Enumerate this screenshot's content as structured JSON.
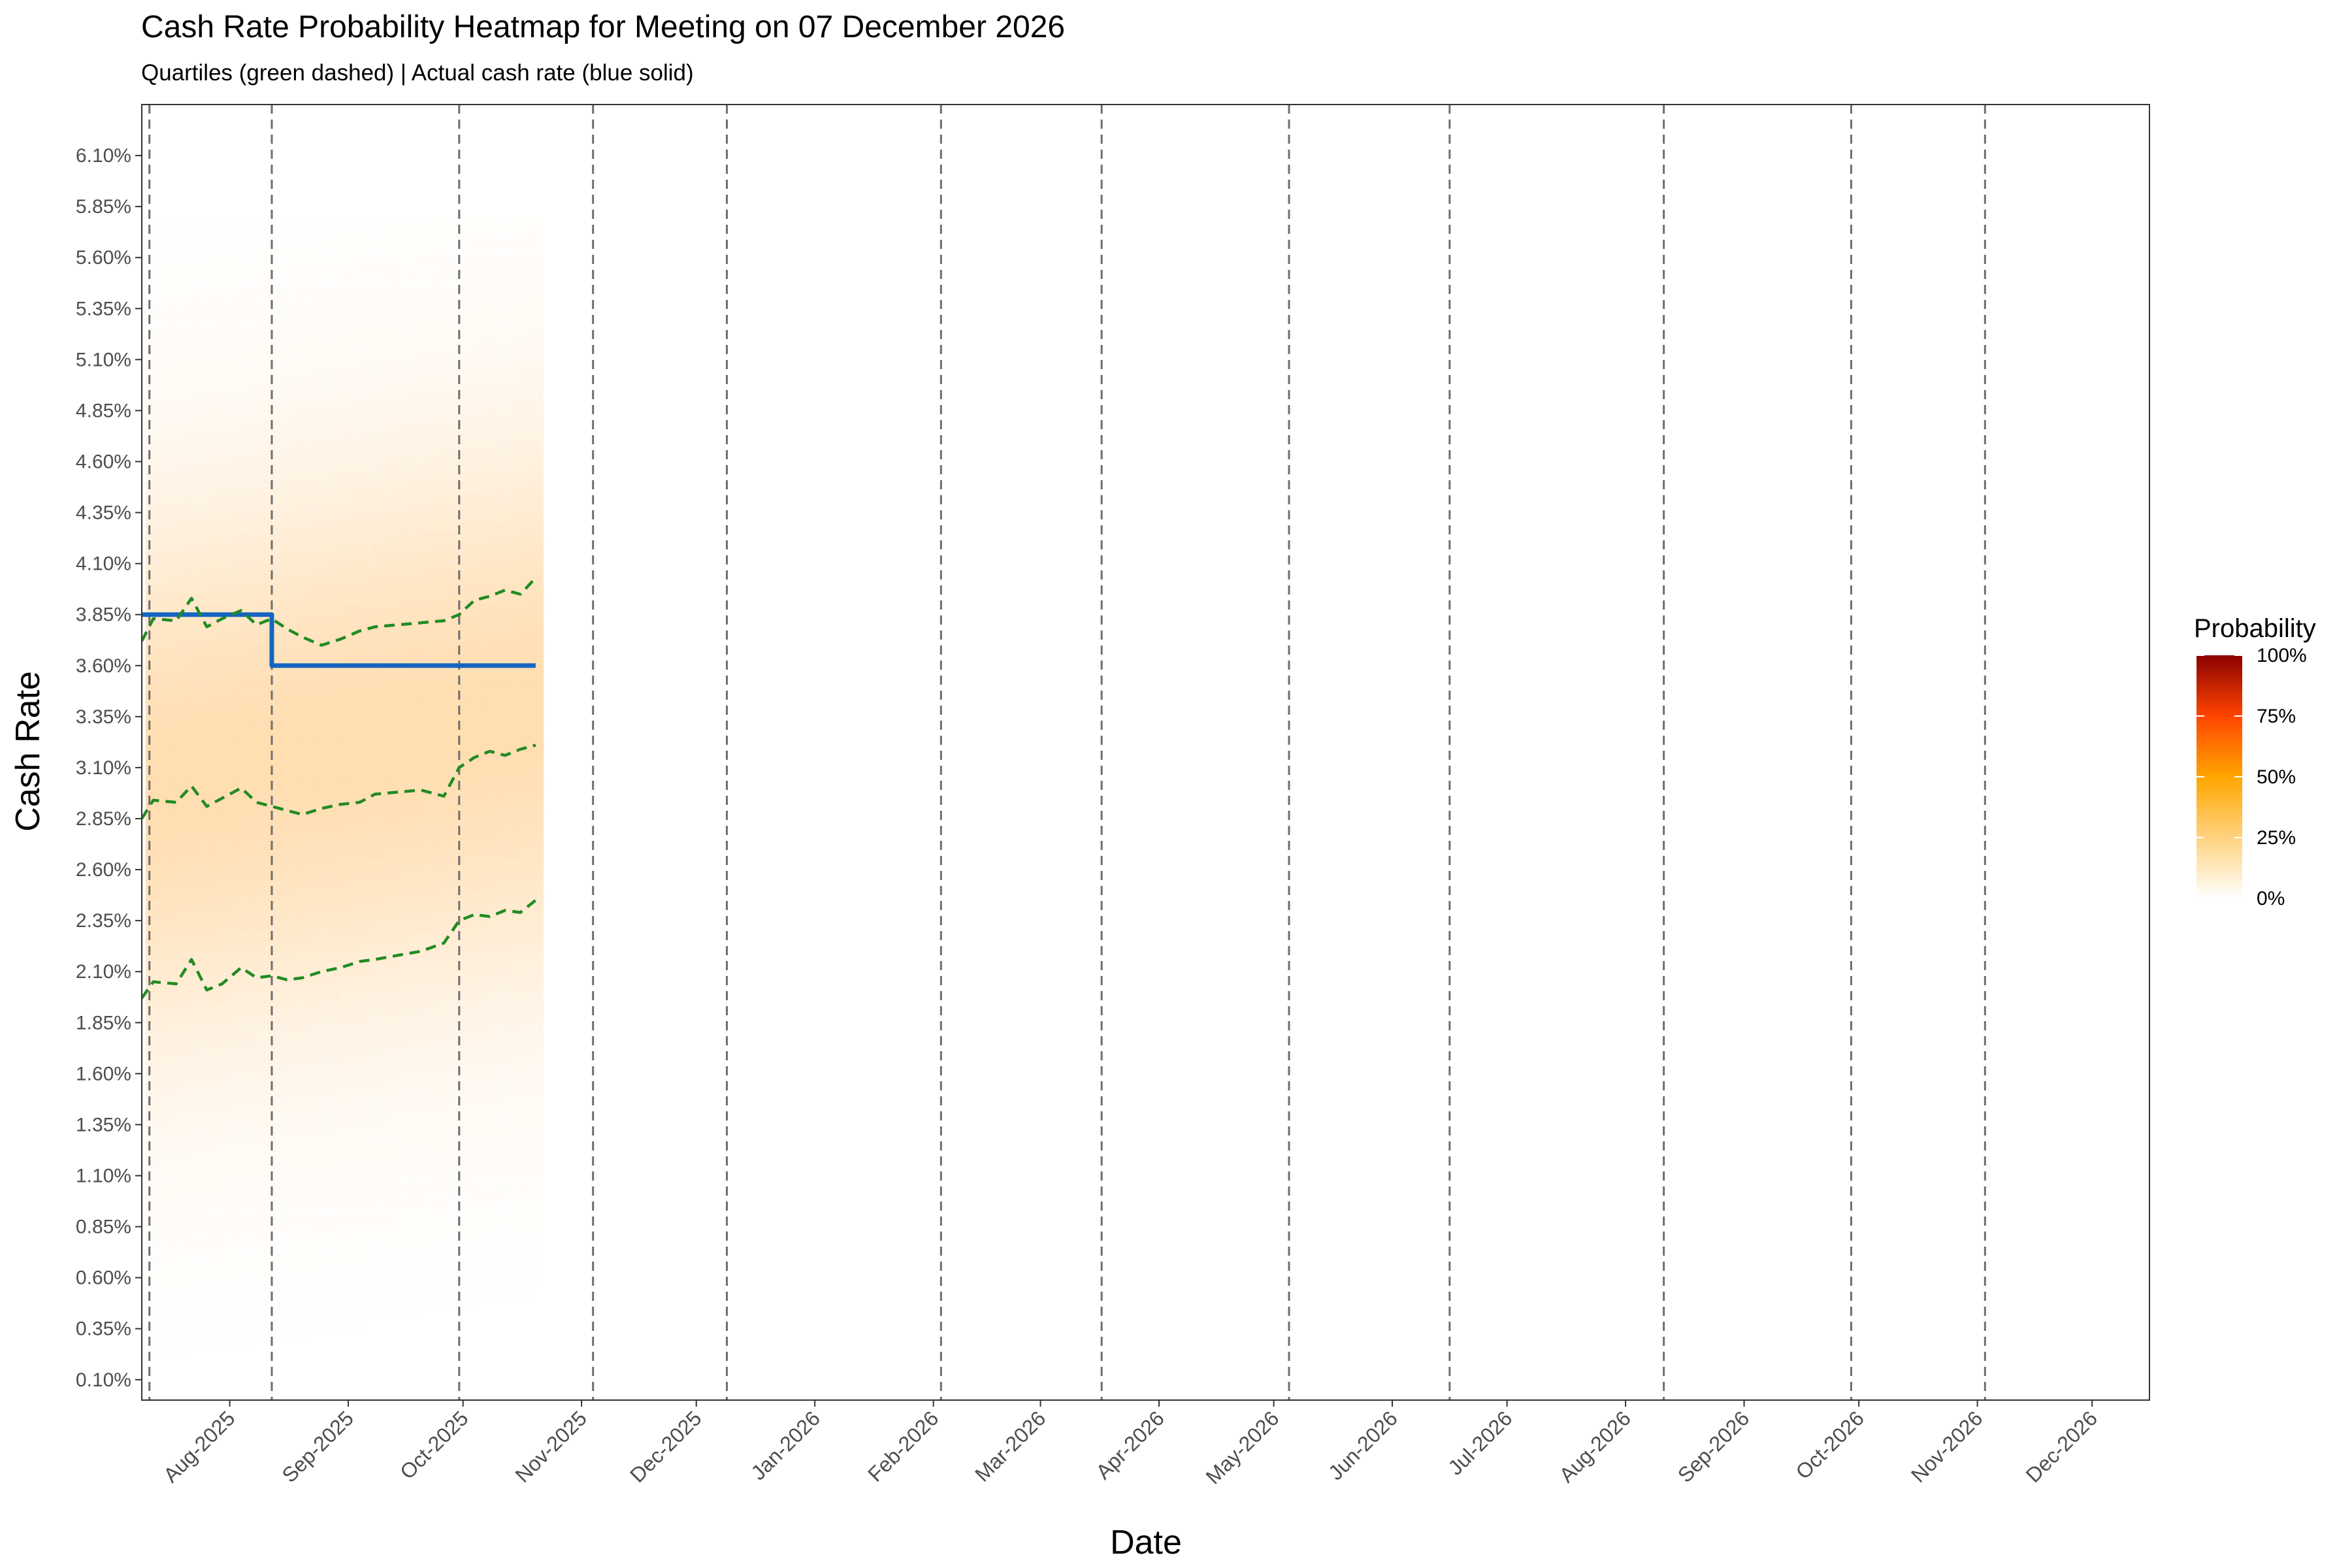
{
  "chart_data": {
    "type": "heatmap",
    "title": "Cash Rate Probability Heatmap for Meeting on 07 December 2026",
    "subtitle": "Quartiles (green dashed) | Actual cash rate (blue solid)",
    "xlabel": "Date",
    "ylabel": "Cash Rate",
    "x_range": [
      "2025-07-09",
      "2026-12-16"
    ],
    "y_range": [
      0.0,
      6.35
    ],
    "y_ticks": [
      "0.10%",
      "0.35%",
      "0.60%",
      "0.85%",
      "1.10%",
      "1.35%",
      "1.60%",
      "1.85%",
      "2.10%",
      "2.35%",
      "2.60%",
      "2.85%",
      "3.10%",
      "3.35%",
      "3.60%",
      "3.85%",
      "4.10%",
      "4.35%",
      "4.60%",
      "4.85%",
      "5.10%",
      "5.35%",
      "5.60%",
      "5.85%",
      "6.10%"
    ],
    "x_ticks": [
      {
        "label": "Aug-2025",
        "date": "2025-08-01"
      },
      {
        "label": "Sep-2025",
        "date": "2025-09-01"
      },
      {
        "label": "Oct-2025",
        "date": "2025-10-01"
      },
      {
        "label": "Nov-2025",
        "date": "2025-11-01"
      },
      {
        "label": "Dec-2025",
        "date": "2025-12-01"
      },
      {
        "label": "Jan-2026",
        "date": "2026-01-01"
      },
      {
        "label": "Feb-2026",
        "date": "2026-02-01"
      },
      {
        "label": "Mar-2026",
        "date": "2026-03-01"
      },
      {
        "label": "Apr-2026",
        "date": "2026-04-01"
      },
      {
        "label": "May-2026",
        "date": "2026-05-01"
      },
      {
        "label": "Jun-2026",
        "date": "2026-06-01"
      },
      {
        "label": "Jul-2026",
        "date": "2026-07-01"
      },
      {
        "label": "Aug-2026",
        "date": "2026-08-01"
      },
      {
        "label": "Sep-2026",
        "date": "2026-09-01"
      },
      {
        "label": "Oct-2026",
        "date": "2026-10-01"
      },
      {
        "label": "Nov-2026",
        "date": "2026-11-01"
      },
      {
        "label": "Dec-2026",
        "date": "2026-12-01"
      }
    ],
    "meeting_dates": [
      "2025-07-11",
      "2025-08-12",
      "2025-09-30",
      "2025-11-04",
      "2025-12-09",
      "2026-02-03",
      "2026-03-17",
      "2026-05-05",
      "2026-06-16",
      "2026-08-11",
      "2026-09-29",
      "2026-11-03"
    ],
    "heatmap": {
      "date_range": [
        "2025-07-10",
        "2025-10-22"
      ],
      "y_extent": [
        0.2,
        5.75
      ],
      "peak_rate": 3.0,
      "max_probability": 0.12
    },
    "series": [
      {
        "name": "Actual cash rate",
        "style": "blue solid",
        "color": "#1565c0",
        "x": [
          "2025-07-09",
          "2025-08-12",
          "2025-08-12",
          "2025-10-20"
        ],
        "y": [
          3.85,
          3.85,
          3.6,
          3.6
        ]
      },
      {
        "name": "Upper quartile",
        "style": "green dashed",
        "color": "#228b22",
        "x": [
          "2025-07-09",
          "2025-07-12",
          "2025-07-18",
          "2025-07-22",
          "2025-07-26",
          "2025-07-30",
          "2025-08-04",
          "2025-08-08",
          "2025-08-12",
          "2025-08-16",
          "2025-08-20",
          "2025-08-25",
          "2025-08-30",
          "2025-09-04",
          "2025-09-08",
          "2025-09-14",
          "2025-09-20",
          "2025-09-26",
          "2025-09-30",
          "2025-10-04",
          "2025-10-08",
          "2025-10-12",
          "2025-10-16",
          "2025-10-20"
        ],
        "y": [
          3.72,
          3.83,
          3.82,
          3.93,
          3.79,
          3.83,
          3.87,
          3.8,
          3.83,
          3.78,
          3.74,
          3.7,
          3.73,
          3.77,
          3.79,
          3.8,
          3.81,
          3.82,
          3.85,
          3.92,
          3.94,
          3.97,
          3.95,
          4.03
        ]
      },
      {
        "name": "Median",
        "style": "green dashed",
        "color": "#228b22",
        "x": [
          "2025-07-09",
          "2025-07-12",
          "2025-07-18",
          "2025-07-22",
          "2025-07-26",
          "2025-07-30",
          "2025-08-04",
          "2025-08-08",
          "2025-08-12",
          "2025-08-16",
          "2025-08-20",
          "2025-08-25",
          "2025-08-30",
          "2025-09-04",
          "2025-09-08",
          "2025-09-14",
          "2025-09-20",
          "2025-09-26",
          "2025-09-30",
          "2025-10-04",
          "2025-10-08",
          "2025-10-12",
          "2025-10-16",
          "2025-10-20"
        ],
        "y": [
          2.85,
          2.94,
          2.93,
          3.01,
          2.91,
          2.95,
          3.0,
          2.93,
          2.91,
          2.89,
          2.87,
          2.9,
          2.92,
          2.93,
          2.97,
          2.98,
          2.99,
          2.96,
          3.1,
          3.15,
          3.18,
          3.16,
          3.19,
          3.21
        ]
      },
      {
        "name": "Lower quartile",
        "style": "green dashed",
        "color": "#228b22",
        "x": [
          "2025-07-09",
          "2025-07-12",
          "2025-07-18",
          "2025-07-22",
          "2025-07-26",
          "2025-07-30",
          "2025-08-04",
          "2025-08-08",
          "2025-08-12",
          "2025-08-16",
          "2025-08-20",
          "2025-08-25",
          "2025-08-30",
          "2025-09-04",
          "2025-09-08",
          "2025-09-14",
          "2025-09-20",
          "2025-09-26",
          "2025-09-30",
          "2025-10-04",
          "2025-10-08",
          "2025-10-12",
          "2025-10-16",
          "2025-10-20"
        ],
        "y": [
          1.97,
          2.05,
          2.04,
          2.16,
          2.01,
          2.04,
          2.12,
          2.07,
          2.08,
          2.06,
          2.07,
          2.1,
          2.12,
          2.15,
          2.16,
          2.18,
          2.2,
          2.24,
          2.35,
          2.38,
          2.37,
          2.4,
          2.39,
          2.45
        ]
      }
    ],
    "legend": {
      "title": "Probability",
      "placement": "right",
      "labels": [
        "100%",
        "75%",
        "50%",
        "25%",
        "0%"
      ],
      "values": [
        1.0,
        0.75,
        0.5,
        0.25,
        0.0
      ],
      "colors": [
        "#ffffff",
        "#ffd27f",
        "#ffa500",
        "#ff4500",
        "#8b0000"
      ]
    },
    "grid": false
  }
}
